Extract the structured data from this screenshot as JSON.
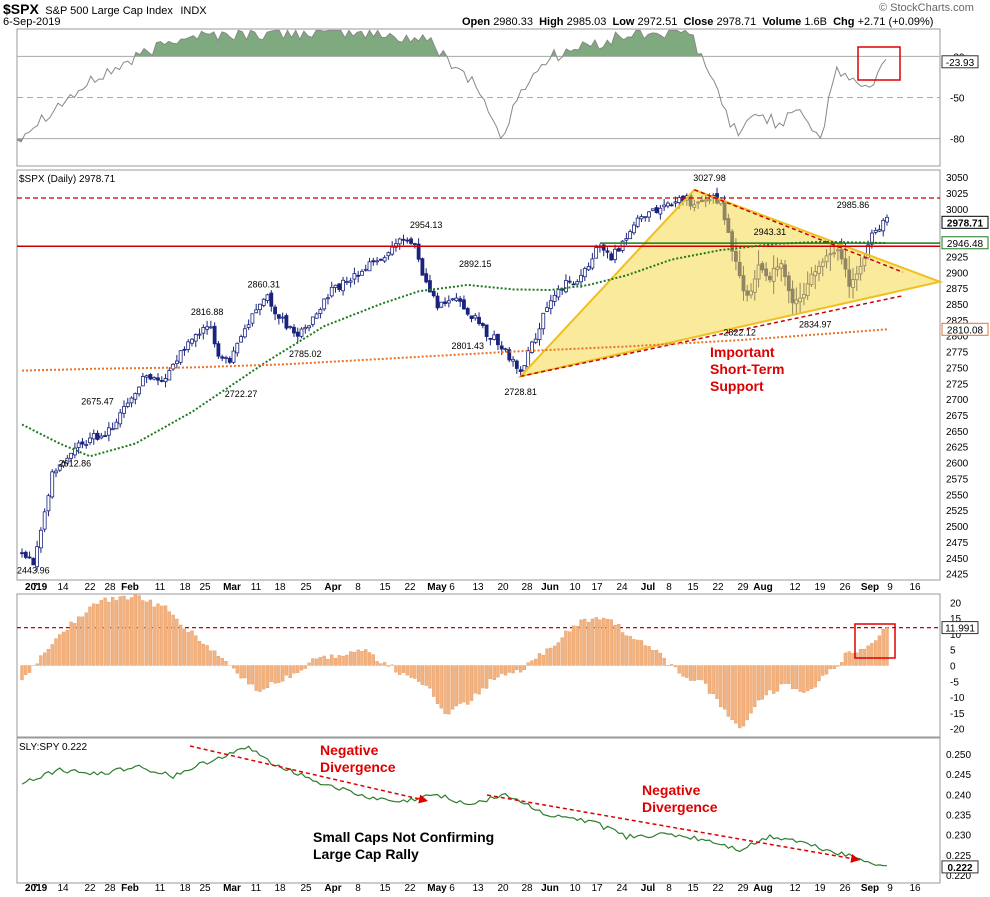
{
  "header": {
    "symbol": "$SPX",
    "name": "S&P 500 Large Cap Index",
    "exchange": "INDX",
    "date": "6-Sep-2019",
    "open_label": "Open",
    "open": "2980.33",
    "high_label": "High",
    "high": "2985.03",
    "low_label": "Low",
    "low": "2972.51",
    "close_label": "Close",
    "close": "2978.71",
    "volume_label": "Volume",
    "volume": "1.6B",
    "chg_label": "Chg",
    "chg": "+2.71 (+0.09%)",
    "brand": "© StockCharts.com"
  },
  "colors": {
    "candle_up": "#3a3a8c",
    "candle_down": "#1a237e",
    "resistance": "#cc0000",
    "support_green": "#1b7a1b",
    "ma_green": "#1e7a1e",
    "ma_orange": "#e8742a",
    "triangle": "#f5d84a",
    "hist": "#f4b27f",
    "sly_line": "#2e7d2e",
    "rsi_fill_green": "#7faa7f",
    "rsi_fill_red": "#b08a8a",
    "annotation": "#dd0000"
  },
  "time_axis": {
    "labels": [
      "2019",
      "7",
      "14",
      "22",
      "28",
      "Feb",
      "11",
      "18",
      "25",
      "Mar",
      "11",
      "18",
      "25",
      "Apr",
      "8",
      "15",
      "22",
      "May",
      "6",
      "13",
      "20",
      "28",
      "Jun",
      "10",
      "17",
      "24",
      "Jul",
      "8",
      "15",
      "22",
      "29",
      "Aug",
      "12",
      "19",
      "26",
      "Sep",
      "9",
      "16"
    ],
    "bold": [
      "2019",
      "Feb",
      "Mar",
      "Apr",
      "May",
      "Jun",
      "Jul",
      "Aug",
      "Sep"
    ]
  },
  "chart_data": [
    {
      "type": "line",
      "panel": "oscillator",
      "title": "",
      "y_ticks": [
        "-20",
        "-50",
        "-80"
      ],
      "ylim": [
        -100,
        0
      ],
      "last_value": "-23.93",
      "reference_lines": [
        -20,
        -50,
        -80
      ]
    },
    {
      "type": "candlestick",
      "panel": "price",
      "title": "$SPX (Daily) 2978.71",
      "y_ticks": [
        "3050",
        "3025",
        "3000",
        "2975",
        "2950",
        "2925",
        "2900",
        "2875",
        "2850",
        "2825",
        "2800",
        "2775",
        "2750",
        "2725",
        "2700",
        "2675",
        "2650",
        "2625",
        "2600",
        "2575",
        "2550",
        "2525",
        "2500",
        "2475",
        "2450",
        "2425"
      ],
      "ylim": [
        2415,
        3058
      ],
      "price_labels": [
        {
          "text": "2443.96",
          "value": 2443.96
        },
        {
          "text": "2612.86",
          "value": 2612.86
        },
        {
          "text": "2675.47",
          "value": 2675.47
        },
        {
          "text": "2816.88",
          "value": 2816.88
        },
        {
          "text": "2722.27",
          "value": 2722.27
        },
        {
          "text": "2860.31",
          "value": 2860.31
        },
        {
          "text": "2785.02",
          "value": 2785.02
        },
        {
          "text": "2954.13",
          "value": 2954.13
        },
        {
          "text": "2892.15",
          "value": 2892.15
        },
        {
          "text": "2801.43",
          "value": 2801.43
        },
        {
          "text": "2728.81",
          "value": 2728.81
        },
        {
          "text": "3027.98",
          "value": 3027.98
        },
        {
          "text": "2943.31",
          "value": 2943.31
        },
        {
          "text": "2822.12",
          "value": 2822.12
        },
        {
          "text": "2834.97",
          "value": 2834.97
        },
        {
          "text": "2985.86",
          "value": 2985.86
        }
      ],
      "right_tags": [
        {
          "text": "2978.71",
          "value": 2978.71,
          "style": "dark"
        },
        {
          "text": "2946.48",
          "value": 2946.48,
          "style": "green"
        },
        {
          "text": "2810.08",
          "value": 2810.08,
          "style": "orange"
        }
      ],
      "resistance_level": 3017,
      "support_level": 2941,
      "annotation": [
        "Important",
        "Short-Term",
        "Support"
      ]
    },
    {
      "type": "bar",
      "panel": "histogram",
      "y_ticks": [
        "20",
        "15",
        "10",
        "5",
        "0",
        "-5",
        "-10",
        "-15",
        "-20"
      ],
      "ylim": [
        -22,
        22
      ],
      "last_value": "11.991",
      "reference_line": 12
    },
    {
      "type": "line",
      "panel": "ratio",
      "title": "SLY:SPY 0.222",
      "y_ticks": [
        "0.250",
        "0.245",
        "0.240",
        "0.235",
        "0.230",
        "0.225",
        "0.220"
      ],
      "ylim": [
        0.2185,
        0.2535
      ],
      "last_value": "0.222",
      "annotations": [
        {
          "lines": [
            "Negative",
            "Divergence"
          ]
        },
        {
          "lines": [
            "Negative",
            "Divergence"
          ]
        },
        {
          "lines": [
            "Small Caps Not Confirming",
            "Large Cap Rally"
          ]
        }
      ]
    }
  ]
}
